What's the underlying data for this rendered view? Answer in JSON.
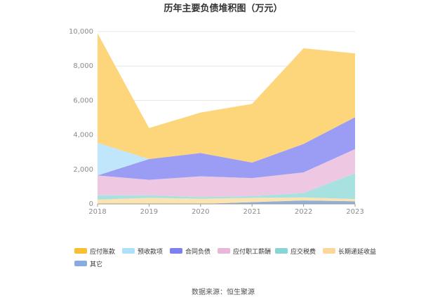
{
  "chart_data": {
    "type": "area",
    "stacked": true,
    "title": "历年主要负债堆积图（万元）",
    "x": [
      "2018",
      "2019",
      "2020",
      "2021",
      "2022",
      "2023"
    ],
    "ylim": [
      0,
      10000
    ],
    "yticks": [
      0,
      2000,
      4000,
      6000,
      8000,
      10000
    ],
    "ytick_labels": [
      "0",
      "2,000",
      "4,000",
      "6,000",
      "8,000",
      "10,000"
    ],
    "grid": true,
    "legend_position": "bottom-left",
    "series": [
      {
        "name": "其它",
        "color": "#8fb0d9",
        "values": [
          0,
          0,
          0,
          100,
          200,
          150
        ]
      },
      {
        "name": "长期递延收益",
        "color": "#fde3b0",
        "values": [
          250,
          350,
          300,
          250,
          180,
          130
        ]
      },
      {
        "name": "应交税费",
        "color": "#a8e2e0",
        "values": [
          250,
          150,
          100,
          100,
          250,
          1500
        ]
      },
      {
        "name": "应付职工薪酬",
        "color": "#eec7e3",
        "values": [
          1150,
          900,
          1200,
          1050,
          1200,
          1400
        ]
      },
      {
        "name": "合同负债",
        "color": "#9b9df5",
        "values": [
          0,
          1200,
          1350,
          900,
          1650,
          1850
        ]
      },
      {
        "name": "预收款项",
        "color": "#bfe6fb",
        "values": [
          1900,
          0,
          0,
          0,
          0,
          0
        ]
      },
      {
        "name": "应付账款",
        "color": "#fdd57a",
        "values": [
          6350,
          1800,
          2350,
          3400,
          5550,
          3700
        ]
      }
    ],
    "legend": [
      {
        "name": "应付账款",
        "swatch": "#f7bf34"
      },
      {
        "name": "预收款项",
        "swatch": "#aee0f9"
      },
      {
        "name": "合同负债",
        "swatch": "#7f80f0"
      },
      {
        "name": "应付职工薪酬",
        "swatch": "#e9b7da"
      },
      {
        "name": "应交税费",
        "swatch": "#88d5d5"
      },
      {
        "name": "长期递延收益",
        "swatch": "#fcd799"
      },
      {
        "name": "其它",
        "swatch": "#8aa9dc"
      }
    ],
    "source": "数据来源：恒生聚源"
  }
}
